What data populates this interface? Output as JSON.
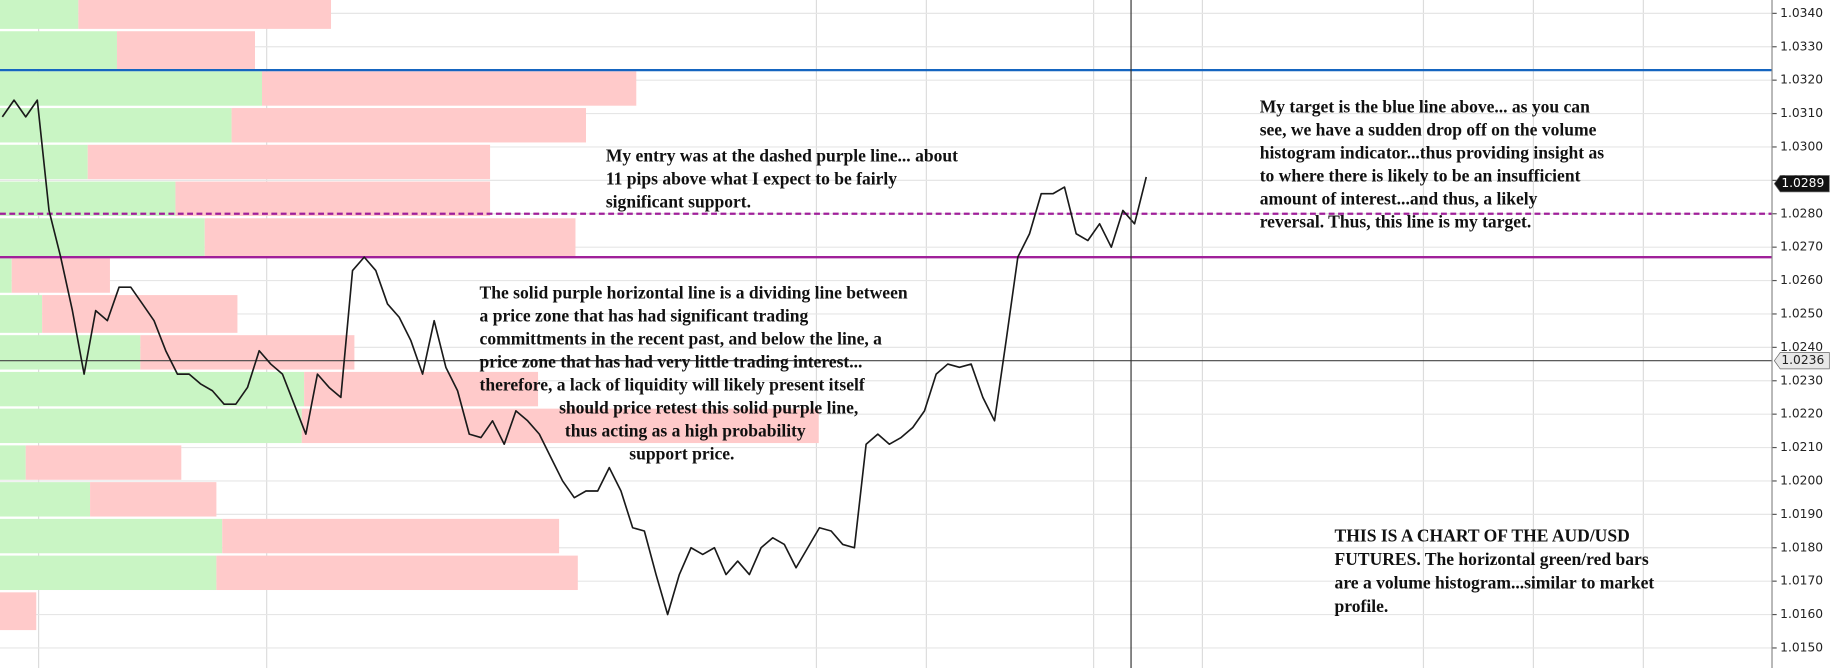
{
  "chart_data": {
    "type": "line",
    "categories": [
      null,
      null,
      null,
      null,
      null,
      null,
      null,
      null,
      null,
      null,
      null,
      null,
      null,
      null,
      null,
      null,
      null,
      null,
      null,
      null,
      null,
      null,
      null,
      null,
      null,
      null,
      null,
      null,
      null,
      null,
      null,
      null,
      null,
      null,
      null,
      null,
      null,
      null,
      null,
      null,
      null,
      null,
      null,
      null,
      null,
      null,
      null,
      null,
      null,
      null,
      null,
      null,
      null,
      null,
      null,
      null,
      null,
      null,
      null,
      null,
      null,
      null,
      null,
      null,
      null,
      null,
      null,
      null,
      null,
      null,
      null,
      null,
      null,
      null,
      null,
      null,
      null,
      null,
      null,
      null,
      null,
      null,
      null,
      null,
      null,
      null,
      null,
      null,
      null,
      null,
      null,
      null,
      null,
      null,
      null,
      null,
      null,
      null,
      null
    ],
    "series": [
      {
        "color": "#1a1a1a",
        "values": [
          1.0309,
          1.0314,
          1.0309,
          1.0314,
          1.0281,
          1.0267,
          1.0251,
          1.0232,
          1.0251,
          1.0248,
          1.0258,
          1.0258,
          1.0253,
          1.0248,
          1.0239,
          1.0232,
          1.0232,
          1.0229,
          1.0227,
          1.0223,
          1.0223,
          1.0228,
          1.0239,
          1.0235,
          1.0232,
          1.0223,
          1.0214,
          1.0232,
          1.0228,
          1.0225,
          1.0263,
          1.0267,
          1.0263,
          1.0253,
          1.0249,
          1.0242,
          1.0232,
          1.0248,
          1.0234,
          1.0227,
          1.0214,
          1.0213,
          1.0218,
          1.0211,
          1.0221,
          1.0218,
          1.0214,
          1.0207,
          1.02,
          1.0195,
          1.0197,
          1.0197,
          1.0204,
          1.0197,
          1.0186,
          1.0185,
          1.0172,
          1.016,
          1.0172,
          1.018,
          1.0178,
          1.018,
          1.0172,
          1.0176,
          1.0172,
          1.018,
          1.0183,
          1.0181,
          1.0174,
          1.018,
          1.0186,
          1.0185,
          1.0181,
          1.018,
          1.0211,
          1.0214,
          1.0211,
          1.0213,
          1.0216,
          1.0221,
          1.0232,
          1.0235,
          1.0234,
          1.0235,
          1.0225,
          1.0218,
          1.0242,
          1.0267,
          1.0274,
          1.0286,
          1.0286,
          1.0288,
          1.0274,
          1.0272,
          1.0277,
          1.027,
          1.0281,
          1.0277,
          1.0291
        ]
      }
    ],
    "ylim": [
      1.0144,
      1.0344
    ],
    "yticks": [
      {
        "value": 1.015,
        "label": "1.0150"
      },
      {
        "value": 1.016,
        "label": "1.0160"
      },
      {
        "value": 1.017,
        "label": "1.0170"
      },
      {
        "value": 1.018,
        "label": "1.0180"
      },
      {
        "value": 1.019,
        "label": "1.0190"
      },
      {
        "value": 1.02,
        "label": "1.0200"
      },
      {
        "value": 1.021,
        "label": "1.0210"
      },
      {
        "value": 1.022,
        "label": "1.0220"
      },
      {
        "value": 1.023,
        "label": "1.0230"
      },
      {
        "value": 1.024,
        "label": "1.0240"
      },
      {
        "value": 1.025,
        "label": "1.0250"
      },
      {
        "value": 1.026,
        "label": "1.0260"
      },
      {
        "value": 1.027,
        "label": "1.0270"
      },
      {
        "value": 1.028,
        "label": "1.0280"
      },
      {
        "value": 1.029,
        "label": "1.0290"
      },
      {
        "value": 1.03,
        "label": "1.0300"
      },
      {
        "value": 1.031,
        "label": "1.0310"
      },
      {
        "value": 1.032,
        "label": "1.0320"
      },
      {
        "value": 1.033,
        "label": "1.0330"
      },
      {
        "value": 1.034,
        "label": "1.0340"
      }
    ],
    "grid": true,
    "volume_profile": {
      "bins": [
        1.0346,
        1.0335,
        1.0323,
        1.0312,
        1.0301,
        1.029,
        1.0279,
        1.0267,
        1.0256,
        1.0244,
        1.0233,
        1.0222,
        1.0211,
        1.02,
        1.0189,
        1.0178,
        1.0167,
        1.0155
      ],
      "green_color": "#c9f5c4",
      "red_color": "#ffcaca",
      "green": [
        67,
        100,
        224,
        198,
        75,
        150,
        175,
        10,
        36,
        120,
        260,
        258,
        22,
        77,
        190,
        185,
        0
      ],
      "red": [
        216,
        118,
        320,
        303,
        344,
        269,
        317,
        84,
        167,
        183,
        200,
        442,
        133,
        108,
        288,
        309,
        31
      ]
    },
    "hlines": [
      {
        "value": 1.0323,
        "color": "#1565c0",
        "style": "solid"
      },
      {
        "value": 1.028,
        "color": "#a0209a",
        "style": "dashed"
      },
      {
        "value": 1.0267,
        "color": "#a0209a",
        "style": "solid"
      },
      {
        "value": 1.0236,
        "color": "#444444",
        "style": "solid"
      }
    ],
    "price_markers": [
      {
        "value": 1.0289,
        "fill": "#111111",
        "text_color": "#ffffff"
      },
      {
        "value": 1.0236,
        "fill": "#e8e8e8",
        "text_color": "#222222"
      }
    ],
    "annotations": [
      {
        "lines": [
          "My entry was at the dashed purple line... about",
          "11 pips above what I expect to be fairly",
          "significant support."
        ]
      },
      {
        "lines": [
          "My target is the blue line above... as you can",
          "see, we have a sudden drop off on the volume",
          "histogram indicator...thus providing insight as",
          "to where there is likely to be an insufficient",
          "amount of interest...and thus, a likely",
          "reversal. Thus, this line is my target."
        ]
      },
      {
        "lines": [
          "The solid purple horizontal line is a dividing line between",
          "a price zone that has had significant trading",
          "committments in the recent past, and below the line, a",
          "price zone that has had very little trading interest...",
          "therefore, a lack of liquidity will likely present itself",
          "should price retest this solid purple line,",
          "thus acting as a high probability",
          "support price."
        ]
      },
      {
        "lines": [
          "THIS IS A CHART OF THE AUD/USD",
          "FUTURES. The horizontal green/red bars",
          "are a volume histogram...similar to market",
          "profile."
        ]
      }
    ]
  }
}
